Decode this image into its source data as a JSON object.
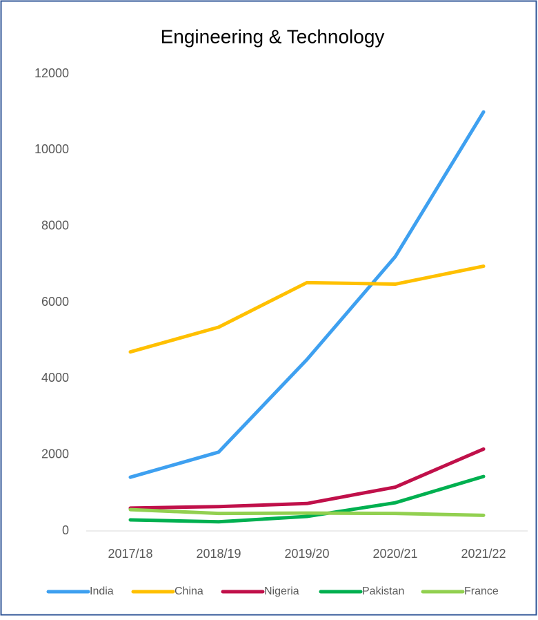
{
  "chart_data": {
    "type": "line",
    "title": "Engineering & Technology",
    "categories": [
      "2017/18",
      "2018/19",
      "2019/20",
      "2020/21",
      "2021/22"
    ],
    "series": [
      {
        "name": "India",
        "color": "#3ea0f0",
        "values": [
          1410,
          2070,
          4500,
          7200,
          11000
        ]
      },
      {
        "name": "China",
        "color": "#ffc000",
        "values": [
          4700,
          5350,
          6520,
          6480,
          6950
        ]
      },
      {
        "name": "Nigeria",
        "color": "#c0104a",
        "values": [
          600,
          640,
          720,
          1150,
          2150
        ]
      },
      {
        "name": "Pakistan",
        "color": "#00b050",
        "values": [
          290,
          240,
          380,
          740,
          1430
        ]
      },
      {
        "name": "France",
        "color": "#92d050",
        "values": [
          560,
          460,
          470,
          460,
          410
        ]
      }
    ],
    "ylim": [
      0,
      12000
    ],
    "yticks": [
      0,
      2000,
      4000,
      6000,
      8000,
      10000,
      12000
    ],
    "grid": false,
    "legend": "bottom"
  }
}
